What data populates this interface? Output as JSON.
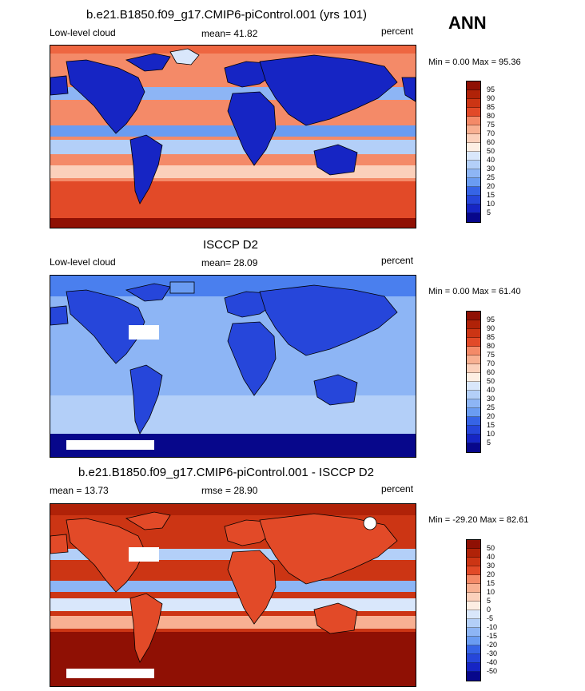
{
  "season": "ANN",
  "palettes": {
    "abs": [
      "#07078b",
      "#1625c4",
      "#2646da",
      "#3664e6",
      "#4a7fee",
      "#6a9cf2",
      "#8db5f5",
      "#b3cff8",
      "#d9e7fb",
      "#fdeee3",
      "#fbd0bb",
      "#f8b092",
      "#f48a68",
      "#ee6641",
      "#e24a28",
      "#cc3514",
      "#b02208",
      "#8f1004"
    ],
    "diff": [
      "#07078b",
      "#1625c4",
      "#2646da",
      "#3664e6",
      "#4a7fee",
      "#6a9cf2",
      "#8db5f5",
      "#b3cff8",
      "#d9e7fb",
      "#fdeee3",
      "#fbd0bb",
      "#f8b092",
      "#f48a68",
      "#ee6641",
      "#e24a28",
      "#cc3514",
      "#b02208",
      "#8f1004"
    ]
  },
  "panels": [
    {
      "title": "b.e21.B1850.f09_g17.CMIP6-piControl.001 (yrs 101)",
      "left": "Low-level cloud",
      "center": "mean=  41.82",
      "right": "percent",
      "minmax": "Min =   0.00 Max =  95.36",
      "ocean": "#f48a68",
      "levels": [
        "95",
        "90",
        "85",
        "80",
        "75",
        "70",
        "60",
        "50",
        "40",
        "30",
        "25",
        "20",
        "15",
        "10",
        "5"
      ],
      "palette": "abs"
    },
    {
      "title": "ISCCP D2",
      "left": "Low-level cloud",
      "center": "mean=  28.09",
      "right": "percent",
      "minmax": "Min =   0.00 Max =  61.40",
      "ocean": "#8db5f5",
      "levels": [
        "95",
        "90",
        "85",
        "80",
        "75",
        "70",
        "60",
        "50",
        "40",
        "30",
        "25",
        "20",
        "15",
        "10",
        "5"
      ],
      "palette": "abs"
    },
    {
      "title": "b.e21.B1850.f09_g17.CMIP6-piControl.001 - ISCCP D2",
      "left": "mean =  13.73",
      "center": "rmse =  28.90",
      "right": "percent",
      "minmax": "Min = -29.20 Max =  82.61",
      "ocean": "#cc3514",
      "levels": [
        "50",
        "40",
        "30",
        "20",
        "15",
        "10",
        "5",
        "0",
        "-5",
        "-10",
        "-15",
        "-20",
        "-30",
        "-40",
        "-50"
      ],
      "palette": "diff"
    }
  ]
}
